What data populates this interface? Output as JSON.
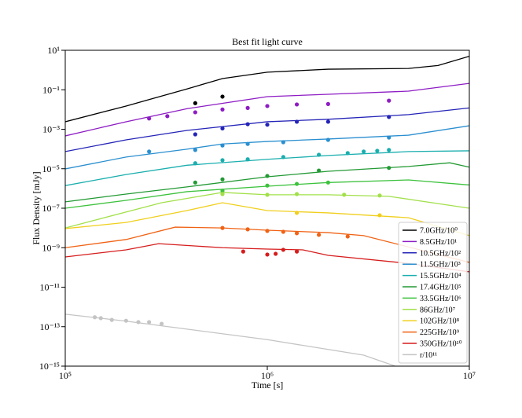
{
  "chart_data": {
    "type": "line",
    "title": "Best fit light curve",
    "x_label": "Time [s]",
    "y_label": "Flux Density [mJy]",
    "xscale": "log",
    "yscale": "log",
    "legend": "lower right",
    "xlim": [
      100000,
      10000000
    ],
    "xticks": [
      {
        "value": 100000,
        "label": "10⁵"
      },
      {
        "value": 1000000,
        "label": "10⁶"
      },
      {
        "value": 10000000,
        "label": "10⁷"
      }
    ],
    "ylim": [
      1e-15,
      10
    ],
    "yticks": [
      {
        "value": 10,
        "label": "10¹"
      },
      {
        "value": 0.1,
        "label": "10⁻¹"
      },
      {
        "value": 0.001,
        "label": "10⁻³"
      },
      {
        "value": 1e-05,
        "label": "10⁻⁵"
      },
      {
        "value": 1e-07,
        "label": "10⁻⁷"
      },
      {
        "value": 1e-09,
        "label": "10⁻⁹"
      },
      {
        "value": 1e-11,
        "label": "10⁻¹¹"
      },
      {
        "value": 1e-13,
        "label": "10⁻¹³"
      },
      {
        "value": 1e-15,
        "label": "10⁻¹⁵"
      }
    ],
    "series": [
      {
        "name": "7.0GHz/10⁰",
        "color": "#000000",
        "x": [
          100000,
          200000,
          400000,
          600000,
          1000000,
          2000000,
          5000000,
          7000000,
          10000000
        ],
        "values": [
          0.0024,
          0.015,
          0.11,
          0.37,
          0.78,
          1.1,
          1.2,
          1.7,
          5
        ],
        "obs_x": [
          440000,
          600000
        ],
        "obs": [
          0.021,
          0.045
        ]
      },
      {
        "name": "8.5GHz/10¹",
        "color": "#8e1cc4",
        "x": [
          100000,
          200000,
          400000,
          1000000,
          2000000,
          5000000,
          10000000
        ],
        "values": [
          0.00046,
          0.0024,
          0.011,
          0.045,
          0.059,
          0.085,
          0.21
        ],
        "obs_x": [
          260000,
          320000,
          440000,
          600000,
          800000,
          1000000,
          1400000,
          2000000,
          4000000
        ],
        "obs": [
          0.0035,
          0.0046,
          0.0072,
          0.01,
          0.012,
          0.015,
          0.018,
          0.019,
          0.028
        ]
      },
      {
        "name": "10.5GHz/10²",
        "color": "#2424b8",
        "x": [
          100000,
          200000,
          400000,
          1000000,
          2000000,
          5000000,
          10000000
        ],
        "values": [
          7.4e-05,
          0.00029,
          0.00087,
          0.0024,
          0.0032,
          0.0055,
          0.012
        ],
        "obs_x": [
          440000,
          600000,
          800000,
          1000000,
          1400000,
          2000000,
          4000000
        ],
        "obs": [
          0.00055,
          0.0011,
          0.0018,
          0.0017,
          0.0024,
          0.0024,
          0.0042
        ]
      },
      {
        "name": "11.5GHz/10³",
        "color": "#2a8fd0",
        "x": [
          100000,
          200000,
          400000,
          600000,
          1000000,
          2000000,
          5000000,
          10000000
        ],
        "values": [
          9.8e-06,
          3.9e-05,
          9.8e-05,
          0.00018,
          0.00024,
          0.00032,
          0.0005,
          0.0015
        ],
        "obs_x": [
          260000,
          440000,
          600000,
          800000,
          1200000,
          2000000,
          4000000
        ],
        "obs": [
          7.4e-05,
          8.9e-05,
          0.00015,
          0.00018,
          0.00022,
          0.00029,
          0.00038
        ]
      },
      {
        "name": "15.5GHz/10⁴",
        "color": "#1aaeae",
        "x": [
          100000,
          200000,
          400000,
          1000000,
          2000000,
          5000000,
          10000000
        ],
        "values": [
          1.4e-06,
          5.1e-06,
          1.5e-05,
          3e-05,
          4.7e-05,
          7.4e-05,
          8.1e-05
        ],
        "obs_x": [
          440000,
          600000,
          800000,
          1200000,
          1800000,
          2500000,
          3000000,
          3500000,
          4000000
        ],
        "obs": [
          1.9e-05,
          2.7e-05,
          3e-05,
          3.9e-05,
          5.1e-05,
          6.2e-05,
          7.4e-05,
          8.1e-05,
          8.9e-05
        ]
      },
      {
        "name": "17.4GHz/10⁵",
        "color": "#239a34",
        "x": [
          100000,
          200000,
          400000,
          1000000,
          2000000,
          5000000,
          8000000,
          10000000
        ],
        "values": [
          2.1e-07,
          5.2e-07,
          1.2e-06,
          3.9e-06,
          7.4e-06,
          1.3e-05,
          2e-05,
          1.2e-05
        ],
        "obs_x": [
          440000,
          600000,
          1000000,
          1800000,
          4000000
        ],
        "obs": [
          2e-06,
          2.9e-06,
          4.3e-06,
          8.1e-06,
          1.1e-05
        ]
      },
      {
        "name": "33.5GHz/10⁶",
        "color": "#3cc23c",
        "x": [
          100000,
          200000,
          400000,
          1000000,
          2000000,
          5000000,
          10000000
        ],
        "values": [
          1e-07,
          2.5e-07,
          6.9e-07,
          1.3e-06,
          2e-06,
          2.7e-06,
          1.5e-06
        ],
        "obs_x": [
          600000,
          1000000,
          1400000,
          2000000
        ],
        "obs": [
          7.6e-07,
          1.4e-06,
          1.7e-06,
          2e-06
        ]
      },
      {
        "name": "86GHz/10⁷",
        "color": "#a2e04a",
        "x": [
          100000,
          300000,
          600000,
          1000000,
          2000000,
          4000000,
          10000000
        ],
        "values": [
          1e-08,
          1.9e-07,
          6.3e-07,
          4.8e-07,
          4.8e-07,
          4e-07,
          1e-07
        ],
        "obs_x": [
          600000,
          1000000,
          1400000,
          2400000,
          3600000
        ],
        "obs": [
          5.2e-07,
          4.8e-07,
          5.2e-07,
          4.8e-07,
          4.4e-07
        ]
      },
      {
        "name": "102GHz/10⁸",
        "color": "#f0cf1c",
        "x": [
          100000,
          200000,
          400000,
          600000,
          1000000,
          2000000,
          5000000,
          10000000
        ],
        "values": [
          9.3e-09,
          1.9e-08,
          7.6e-08,
          1.9e-07,
          7.6e-08,
          5.8e-08,
          3.3e-08,
          4.1e-09
        ],
        "obs_x": [
          1400000,
          3600000
        ],
        "obs": [
          5.8e-08,
          4.4e-08
        ]
      },
      {
        "name": "225GHz/10⁹",
        "color": "#f06214",
        "x": [
          100000,
          200000,
          350000,
          600000,
          1000000,
          2000000,
          3000000,
          10000000
        ],
        "values": [
          1e-09,
          2.6e-09,
          1.1e-08,
          1e-08,
          7.7e-09,
          5.8e-09,
          4.1e-09,
          1.8e-10
        ],
        "obs_x": [
          600000,
          800000,
          1000000,
          1200000,
          1400000,
          1800000,
          2500000
        ],
        "obs": [
          1e-08,
          8.5e-09,
          7.1e-09,
          6.4e-09,
          5.4e-09,
          4.5e-09,
          3.7e-09
        ]
      },
      {
        "name": "350GHz/10¹⁰",
        "color": "#d61c1c",
        "x": [
          100000,
          200000,
          290000,
          600000,
          1000000,
          1500000,
          2000000,
          5000000,
          10000000
        ],
        "values": [
          3.4e-10,
          7.8e-10,
          1.6e-09,
          1e-09,
          8.5e-10,
          7.8e-10,
          4.1e-10,
          1.6e-10,
          6e-11
        ],
        "obs_x": [
          760000,
          1000000,
          1100000,
          1200000,
          1400000
        ],
        "obs": [
          6.4e-10,
          4.5e-10,
          4.9e-10,
          7.8e-10,
          6.4e-10
        ]
      },
      {
        "name": "r/10¹¹",
        "color": "#c4c4c4",
        "x": [
          100000,
          200000,
          1000000,
          3000000,
          4300000
        ],
        "values": [
          4.3e-13,
          1.9e-13,
          2.2e-14,
          3.6e-15,
          1e-15
        ],
        "obs_x": [
          140000,
          150000,
          170000,
          200000,
          230000,
          260000,
          300000
        ],
        "obs": [
          3e-13,
          2.7e-13,
          2.2e-13,
          2e-13,
          1.7e-13,
          1.7e-13,
          1.4e-13
        ]
      }
    ]
  }
}
